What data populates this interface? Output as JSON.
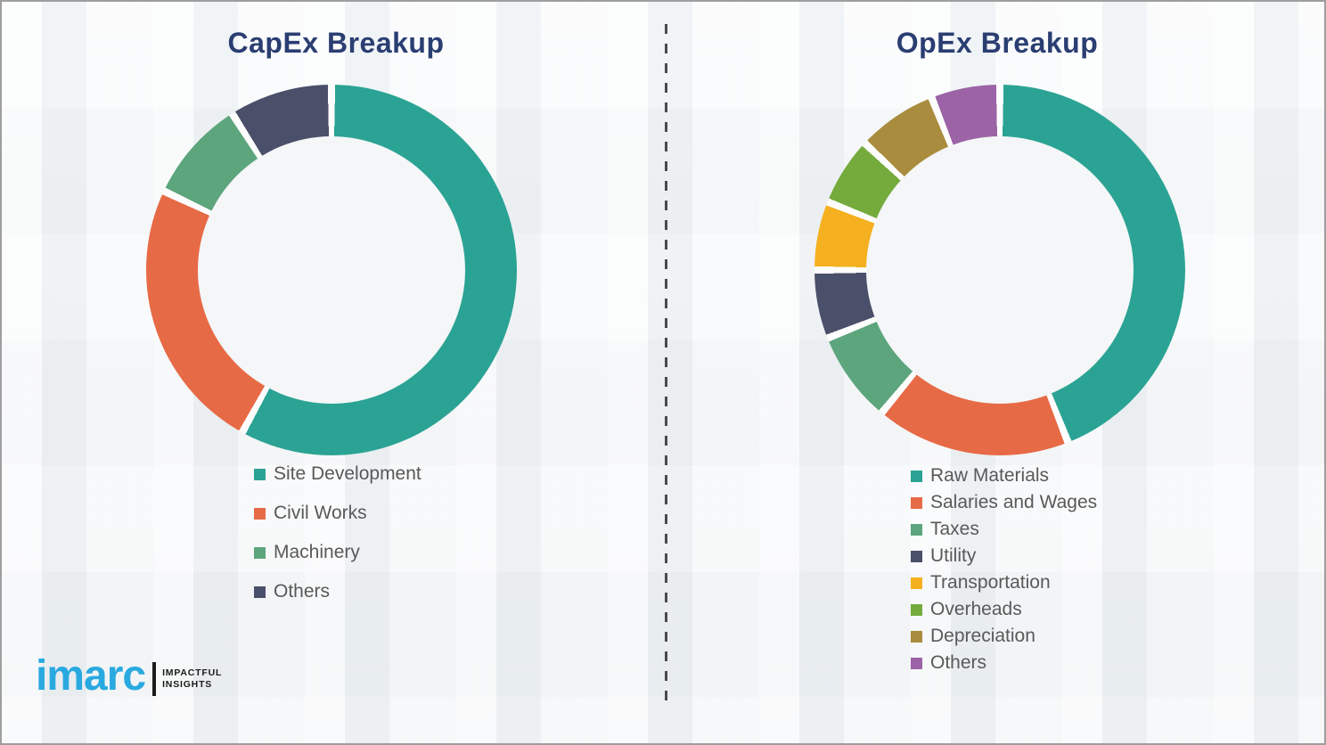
{
  "page": {
    "background_color": "#f3f5f6",
    "border_color": "#9e9e9e",
    "title_color": "#2a3e72",
    "legend_text_color": "#595959",
    "divider_style": "vertical dashed dark-gray line between the two charts"
  },
  "chart_data": [
    {
      "type": "pie",
      "donut": true,
      "title": "CapEx Breakup",
      "categories": [
        "Site Development",
        "Civil Works",
        "Machinery",
        "Others"
      ],
      "values": [
        58,
        24,
        9,
        9
      ],
      "colors": [
        "#2BA394",
        "#E76A46",
        "#5DA57D",
        "#4A506A"
      ],
      "start_angle_deg": 0,
      "direction": "clockwise",
      "legend_position": "below-chart-left"
    },
    {
      "type": "pie",
      "donut": true,
      "title": "OpEx Breakup",
      "categories": [
        "Raw Materials",
        "Salaries and Wages",
        "Taxes",
        "Utility",
        "Transportation",
        "Overheads",
        "Depreciation",
        "Others"
      ],
      "values": [
        44,
        17,
        8,
        6,
        6,
        6,
        7,
        6
      ],
      "colors": [
        "#2BA394",
        "#E76A46",
        "#5DA57D",
        "#4A506A",
        "#F4B01E",
        "#74AB3C",
        "#A98C3D",
        "#9C63A6"
      ],
      "start_angle_deg": 0,
      "direction": "clockwise",
      "legend_position": "below-chart-left"
    }
  ],
  "logo": {
    "brand": "imarc",
    "brand_color": "#29A9E0",
    "tagline_line1": "IMPACTFUL",
    "tagline_line2": "INSIGHTS"
  }
}
